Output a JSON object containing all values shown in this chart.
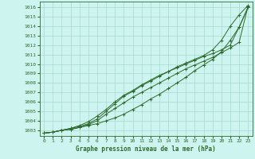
{
  "title": "Graphe pression niveau de la mer (hPa)",
  "bg_color": "#cdf4ee",
  "grid_color": "#a8d8d0",
  "line_color": "#2d6a2d",
  "xlim": [
    -0.5,
    23.5
  ],
  "ylim": [
    1002.4,
    1016.6
  ],
  "yticks": [
    1003,
    1004,
    1005,
    1006,
    1007,
    1008,
    1009,
    1010,
    1011,
    1012,
    1013,
    1014,
    1015,
    1016
  ],
  "xticks": [
    0,
    1,
    2,
    3,
    4,
    5,
    6,
    7,
    8,
    9,
    10,
    11,
    12,
    13,
    14,
    15,
    16,
    17,
    18,
    19,
    20,
    21,
    22,
    23
  ],
  "series": [
    [
      1002.7,
      1002.8,
      1003.0,
      1003.1,
      1003.3,
      1003.5,
      1003.7,
      1004.0,
      1004.3,
      1004.7,
      1005.2,
      1005.7,
      1006.3,
      1006.8,
      1007.4,
      1008.0,
      1008.6,
      1009.3,
      1009.9,
      1010.5,
      1011.3,
      1012.5,
      1013.9,
      1016.0
    ],
    [
      1002.7,
      1002.8,
      1003.0,
      1003.1,
      1003.3,
      1003.6,
      1004.0,
      1004.7,
      1005.3,
      1005.9,
      1006.5,
      1007.0,
      1007.5,
      1008.0,
      1008.5,
      1009.0,
      1009.5,
      1009.9,
      1010.3,
      1010.7,
      1011.2,
      1011.7,
      1012.3,
      1016.1
    ],
    [
      1002.7,
      1002.8,
      1003.0,
      1003.2,
      1003.5,
      1003.9,
      1004.5,
      1005.2,
      1006.0,
      1006.7,
      1007.2,
      1007.8,
      1008.3,
      1008.8,
      1009.2,
      1009.6,
      1010.0,
      1010.4,
      1010.8,
      1011.1,
      1011.5,
      1012.0,
      1013.9,
      1016.0
    ],
    [
      1002.7,
      1002.8,
      1003.0,
      1003.2,
      1003.4,
      1003.7,
      1004.2,
      1005.0,
      1005.8,
      1006.6,
      1007.1,
      1007.7,
      1008.2,
      1008.7,
      1009.2,
      1009.7,
      1010.1,
      1010.5,
      1010.9,
      1011.5,
      1012.5,
      1014.0,
      1015.2,
      1016.2
    ]
  ],
  "ylabel_fontsize": 5.0,
  "xlabel_fontsize": 5.0,
  "tick_fontsize": 4.5,
  "title_fontsize": 5.5
}
